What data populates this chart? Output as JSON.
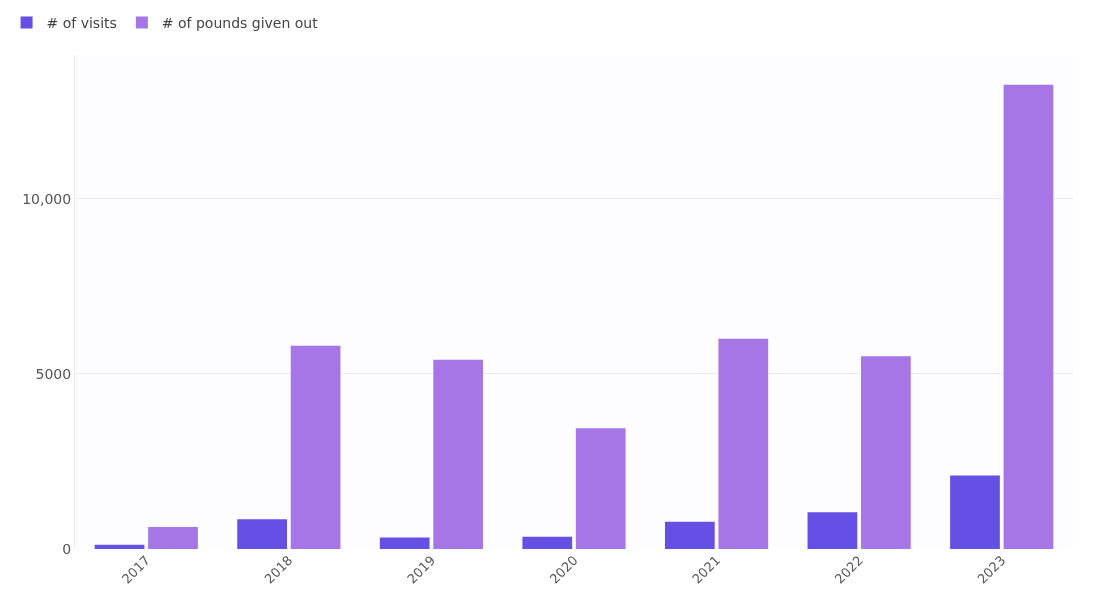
{
  "chart_data": {
    "type": "bar",
    "categories": [
      "2017",
      "2018",
      "2019",
      "2020",
      "2021",
      "2022",
      "2023"
    ],
    "series": [
      {
        "name": "# of visits",
        "color": "#6450e4",
        "values": [
          120,
          850,
          330,
          350,
          780,
          1050,
          2100
        ]
      },
      {
        "name": "# of pounds given out",
        "color": "#a675e6",
        "values": [
          630,
          5800,
          5400,
          3450,
          6000,
          5500,
          13250
        ]
      }
    ],
    "ylim": [
      0,
      14100
    ],
    "yticks": [
      0,
      5000,
      {
        "value": 10000,
        "label": "10,000"
      }
    ],
    "grid": "y",
    "legend": "top left"
  }
}
